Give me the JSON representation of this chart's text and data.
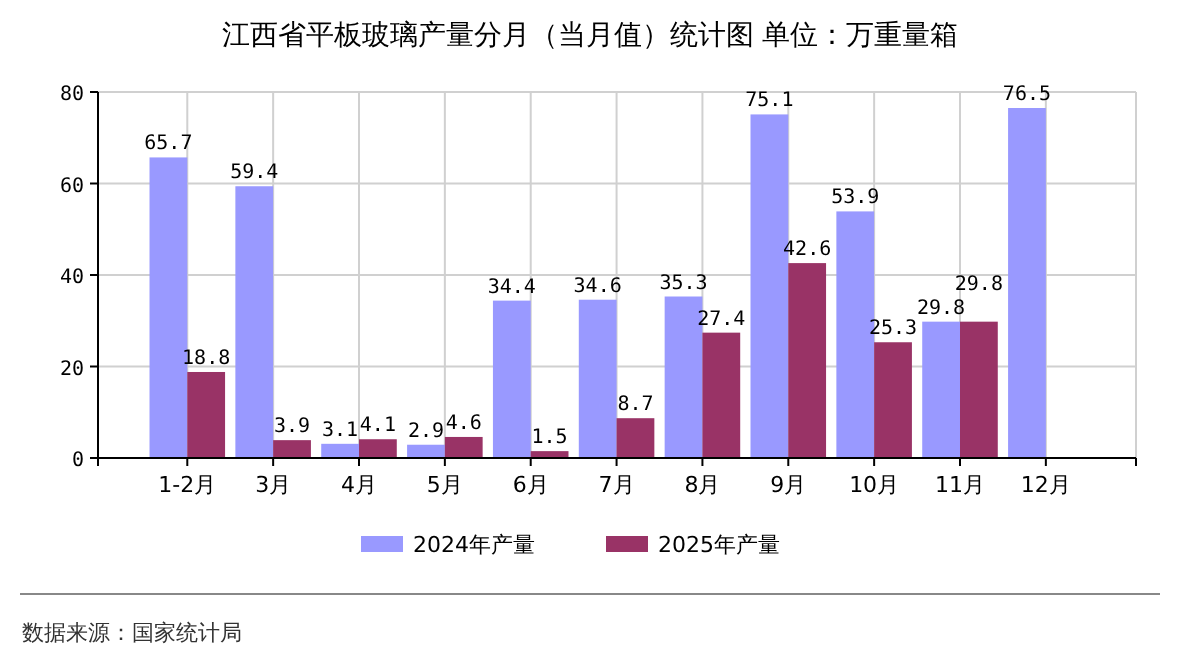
{
  "chart_data": {
    "type": "bar",
    "title": "江西省平板玻璃产量分月（当月值）统计图 单位：万重量箱",
    "categories": [
      "1-2月",
      "3月",
      "4月",
      "5月",
      "6月",
      "7月",
      "8月",
      "9月",
      "10月",
      "11月",
      "12月"
    ],
    "series": [
      {
        "name": "2024年产量",
        "color": "#9999ff",
        "values": [
          65.7,
          59.4,
          3.1,
          2.9,
          34.4,
          34.6,
          35.3,
          75.1,
          53.9,
          29.8,
          76.5
        ]
      },
      {
        "name": "2025年产量",
        "color": "#993366",
        "values": [
          18.8,
          3.9,
          4.1,
          4.6,
          1.5,
          8.7,
          27.4,
          42.6,
          25.3,
          29.8,
          null
        ]
      }
    ],
    "ylim": [
      0,
      80
    ],
    "yticks": [
      0,
      20,
      40,
      60,
      80
    ],
    "grid": true,
    "legend": "bottom",
    "data_labels": true,
    "annotations": [
      "数据来源：国家统计局"
    ]
  }
}
